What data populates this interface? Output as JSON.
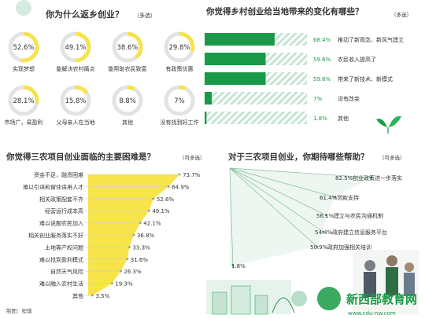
{
  "colors": {
    "green": "#1a9a48",
    "yellow": "#f7e34a",
    "dark": "#333333",
    "ring_bg": "#e3e3e3",
    "stripe": "#bfe0cf",
    "light_green": "#b9dec8"
  },
  "chart_data": [
    {
      "type": "pie",
      "title": "你为什么返乡创业？",
      "note": "（多选）",
      "items": [
        {
          "label": "实现梦想",
          "value": 52.6,
          "text": "52.6%"
        },
        {
          "label": "能解决农村痛点",
          "value": 49.1,
          "text": "49.1%"
        },
        {
          "label": "能帮助农民致富",
          "value": 38.6,
          "text": "38.6%"
        },
        {
          "label": "有政策优惠",
          "value": 29.8,
          "text": "29.8%"
        },
        {
          "label": "市场广，易盈利",
          "value": 28.1,
          "text": "28.1%"
        },
        {
          "label": "父母亲人在当地",
          "value": 15.8,
          "text": "15.8%"
        },
        {
          "label": "其他",
          "value": 8.8,
          "text": "8.8%"
        },
        {
          "label": "没有找到好工作",
          "value": 7,
          "text": "7%"
        }
      ]
    },
    {
      "type": "bar",
      "title": "你觉得乡村创业给当地带来的变化有哪些？",
      "note": "（多选）",
      "categories": [
        "推动了新观念、新风气建立",
        "农民收入提高了",
        "带来了新技术、新模式",
        "没有改变",
        "其他"
      ],
      "values": [
        68.4,
        59.6,
        59.6,
        7,
        1.8
      ],
      "labels": [
        "68.4%",
        "59.6%",
        "59.6%",
        "7%",
        "1.8%"
      ],
      "xlim": [
        0,
        100
      ]
    },
    {
      "type": "bar",
      "title": "你觉得三农项目创业面临的主要困难是？",
      "note": "（可多选）",
      "categories": [
        "资金不足，融资困难",
        "难以引进和留住适用人才",
        "相关政策配套不齐",
        "经营运行成本高",
        "难以说服农民加入",
        "相关创业服务落实不好",
        "土地等产权问题",
        "难以找到盈利模式",
        "自然天气风险",
        "难以融入农村生活",
        "其他"
      ],
      "values": [
        73.7,
        64.9,
        52.6,
        49.1,
        42.1,
        36.8,
        33.3,
        31.6,
        26.3,
        19.3,
        3.5
      ],
      "labels": [
        "73.7%",
        "64.9%",
        "52.6%",
        "49.1%",
        "42.1%",
        "36.8%",
        "33.3%",
        "31.6%",
        "26.3%",
        "19.3%",
        "3.5%"
      ],
      "xlim": [
        0,
        80
      ]
    },
    {
      "type": "bar",
      "title": "对于三农项目创业，你期待哪些帮助？",
      "note": "（可多选）",
      "categories": [
        "创业政策进一步落实",
        "贷款支持",
        "建立与农民沟通机制",
        "政府建立信息服务平台",
        "政府加强相关培训",
        ""
      ],
      "values": [
        82.5,
        61.4,
        56.1,
        54.4,
        50.9,
        1.8
      ],
      "labels": [
        "82.5%",
        "61.4%",
        "56.1%",
        "54.4%",
        "50.9%",
        "1.8%"
      ],
      "xlim": [
        0,
        100
      ]
    }
  ],
  "credit": "制图：程璞",
  "watermark": "新西部教育网",
  "watermark_url": "www.cdu-nw.com"
}
